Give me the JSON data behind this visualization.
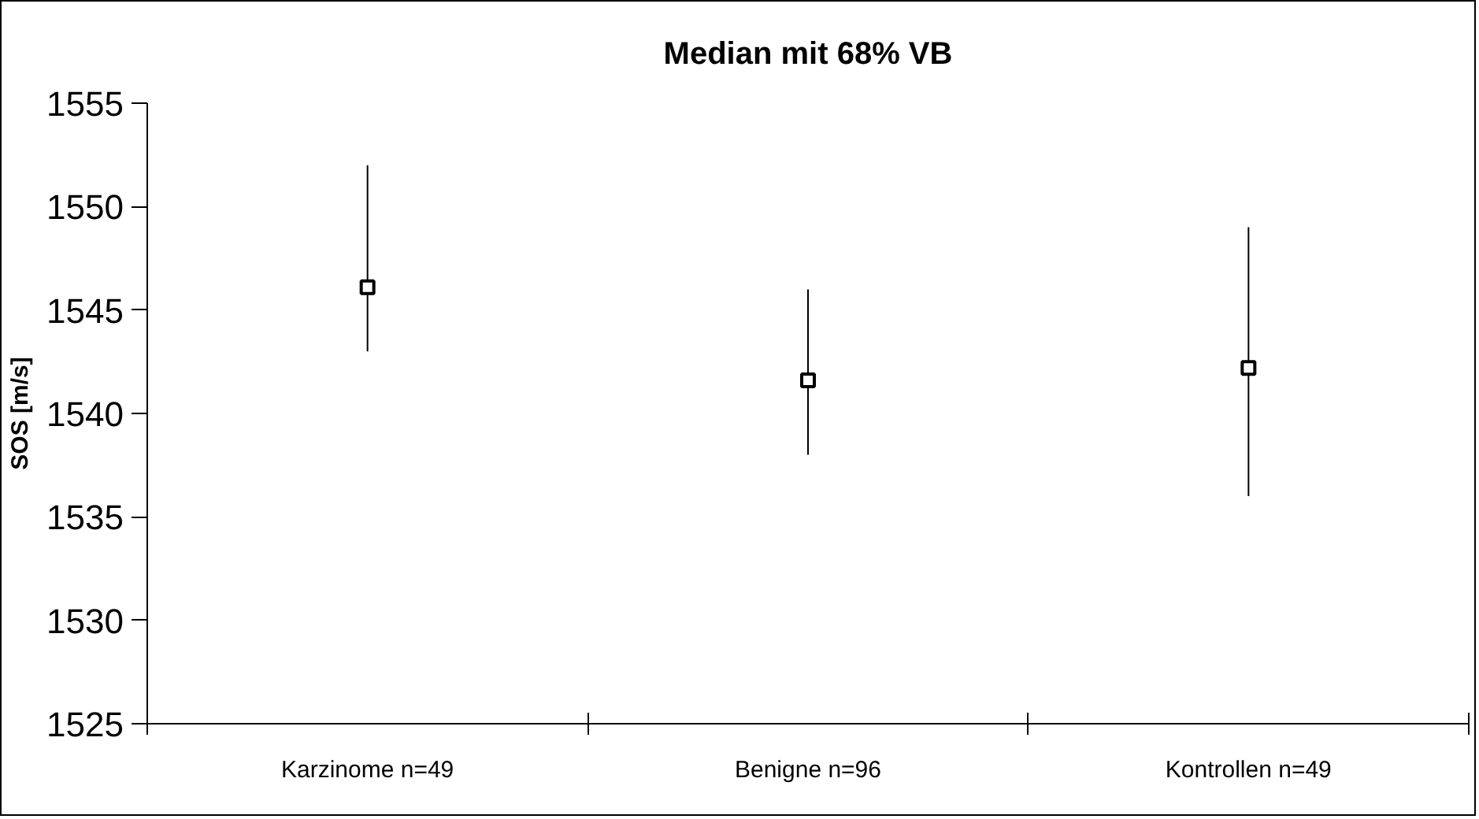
{
  "chart_data": {
    "type": "scatter",
    "title": "Median mit 68% VB",
    "ylabel": "SOS [m/s]",
    "categories": [
      "Karzinome n=49",
      "Benigne n=96",
      "Kontrollen n=49"
    ],
    "values": [
      1546.1,
      1541.6,
      1542.2
    ],
    "errors": [
      [
        1543,
        1552
      ],
      [
        1538,
        1546
      ],
      [
        1536,
        1549
      ]
    ],
    "color": "#000000",
    "marker": "square",
    "ylim": [
      1525,
      1555
    ],
    "yticks": [
      1525,
      1530,
      1535,
      1540,
      1545,
      1550,
      1555
    ],
    "grid": false
  }
}
